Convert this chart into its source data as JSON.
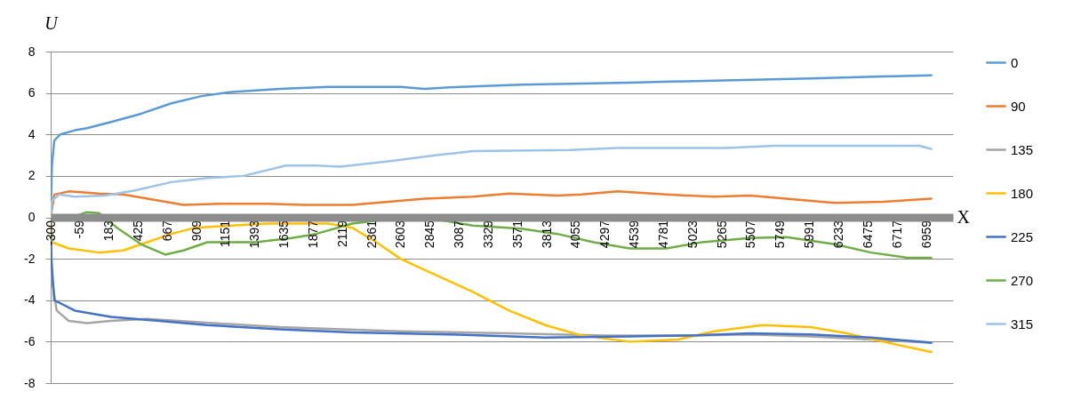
{
  "chart_data": {
    "type": "line",
    "xlabel": "X",
    "ylabel": "U",
    "xlim": [
      -300,
      7180
    ],
    "ylim": [
      -8,
      8
    ],
    "yticks": [
      -8,
      -6,
      -4,
      -2,
      0,
      2,
      4,
      6,
      8
    ],
    "xticks": [
      -300,
      -59,
      183,
      425,
      667,
      909,
      1151,
      1393,
      1635,
      1877,
      2119,
      2361,
      2603,
      2845,
      3087,
      3329,
      3571,
      3813,
      4055,
      4297,
      4539,
      4781,
      5023,
      5265,
      5507,
      5749,
      5991,
      6233,
      6475,
      6717,
      6959
    ],
    "grid": "y",
    "legend": "right",
    "line_style": "solid",
    "marker": "none",
    "series": [
      {
        "name": "0",
        "color": "#5b9bd5",
        "x": [
          -300,
          -290,
          -270,
          -220,
          -100,
          0,
          200,
          450,
          700,
          950,
          1200,
          1600,
          2000,
          2600,
          2800,
          3100,
          3600,
          4500,
          5200,
          6000,
          6600,
          7000
        ],
        "values": [
          0,
          2.5,
          3.7,
          4,
          4.2,
          4.3,
          4.6,
          5,
          5.5,
          5.85,
          6.05,
          6.2,
          6.3,
          6.3,
          6.2,
          6.3,
          6.4,
          6.5,
          6.6,
          6.7,
          6.8,
          6.85
        ]
      },
      {
        "name": "90",
        "color": "#ed7d31",
        "x": [
          -300,
          -270,
          -150,
          100,
          300,
          600,
          800,
          1100,
          1500,
          1800,
          2200,
          2500,
          2800,
          3200,
          3500,
          3900,
          4100,
          4400,
          4800,
          5200,
          5500,
          5900,
          6200,
          6600,
          7000
        ],
        "values": [
          0,
          1.1,
          1.25,
          1.15,
          1.1,
          0.8,
          0.6,
          0.65,
          0.65,
          0.6,
          0.6,
          0.75,
          0.9,
          1,
          1.15,
          1.05,
          1.1,
          1.25,
          1.1,
          1,
          1.05,
          0.85,
          0.7,
          0.75,
          0.9
        ]
      },
      {
        "name": "135",
        "color": "#a5a5a5",
        "x": [
          -300,
          -290,
          -250,
          -150,
          0,
          200,
          500,
          900,
          1600,
          2600,
          3500,
          4300,
          5000,
          5500,
          6000,
          7000
        ],
        "values": [
          0,
          -3,
          -4.5,
          -5,
          -5.1,
          -5,
          -4.9,
          -5.05,
          -5.3,
          -5.5,
          -5.6,
          -5.7,
          -5.7,
          -5.65,
          -5.75,
          -6.05
        ]
      },
      {
        "name": "180",
        "color": "#ffc000",
        "x": [
          -300,
          -290,
          -150,
          100,
          300,
          500,
          700,
          900,
          1200,
          1500,
          2000,
          2200,
          2400,
          2600,
          2900,
          3200,
          3500,
          3800,
          4100,
          4500,
          4900,
          5200,
          5600,
          6000,
          6300,
          6600,
          7000
        ],
        "values": [
          0,
          -1.2,
          -1.5,
          -1.7,
          -1.6,
          -1.2,
          -0.8,
          -0.5,
          -0.4,
          -0.3,
          -0.3,
          -0.5,
          -1.2,
          -2,
          -2.8,
          -3.6,
          -4.5,
          -5.2,
          -5.7,
          -6,
          -5.9,
          -5.5,
          -5.2,
          -5.3,
          -5.6,
          -6,
          -6.5
        ]
      },
      {
        "name": "225",
        "color": "#4472c4",
        "x": [
          -300,
          -295,
          -270,
          -100,
          200,
          600,
          1000,
          1600,
          2200,
          3000,
          3800,
          4500,
          5000,
          5500,
          6000,
          6500,
          7000
        ],
        "values": [
          0,
          -2,
          -4,
          -4.5,
          -4.8,
          -5,
          -5.2,
          -5.4,
          -5.55,
          -5.65,
          -5.8,
          -5.75,
          -5.7,
          -5.6,
          -5.65,
          -5.8,
          -6.05
        ]
      },
      {
        "name": "270",
        "color": "#70ad47",
        "x": [
          -300,
          -280,
          -100,
          0,
          100,
          250,
          450,
          650,
          800,
          1000,
          1400,
          1700,
          1900,
          2200,
          2500,
          2700,
          2900,
          3200,
          3600,
          3900,
          4200,
          4500,
          4800,
          5100,
          5500,
          5800,
          6200,
          6500,
          6800,
          7000
        ],
        "values": [
          0,
          0.05,
          0.05,
          0.25,
          0.2,
          -0.5,
          -1.3,
          -1.8,
          -1.6,
          -1.2,
          -1.2,
          -1,
          -0.8,
          -0.3,
          -0.1,
          0.05,
          -0.1,
          -0.4,
          -0.55,
          -0.8,
          -1.2,
          -1.5,
          -1.5,
          -1.2,
          -1,
          -0.95,
          -1.3,
          -1.7,
          -1.95,
          -1.95
        ]
      },
      {
        "name": "315",
        "color": "#9dc3e6",
        "x": [
          -300,
          -290,
          -230,
          -100,
          150,
          400,
          700,
          1000,
          1300,
          1650,
          1900,
          2100,
          2500,
          2900,
          3200,
          4000,
          4400,
          5300,
          5700,
          6900,
          7000
        ],
        "values": [
          0,
          0.8,
          1.1,
          1,
          1.05,
          1.3,
          1.7,
          1.9,
          2,
          2.5,
          2.5,
          2.45,
          2.7,
          3,
          3.2,
          3.25,
          3.35,
          3.35,
          3.45,
          3.45,
          3.3
        ]
      }
    ]
  }
}
